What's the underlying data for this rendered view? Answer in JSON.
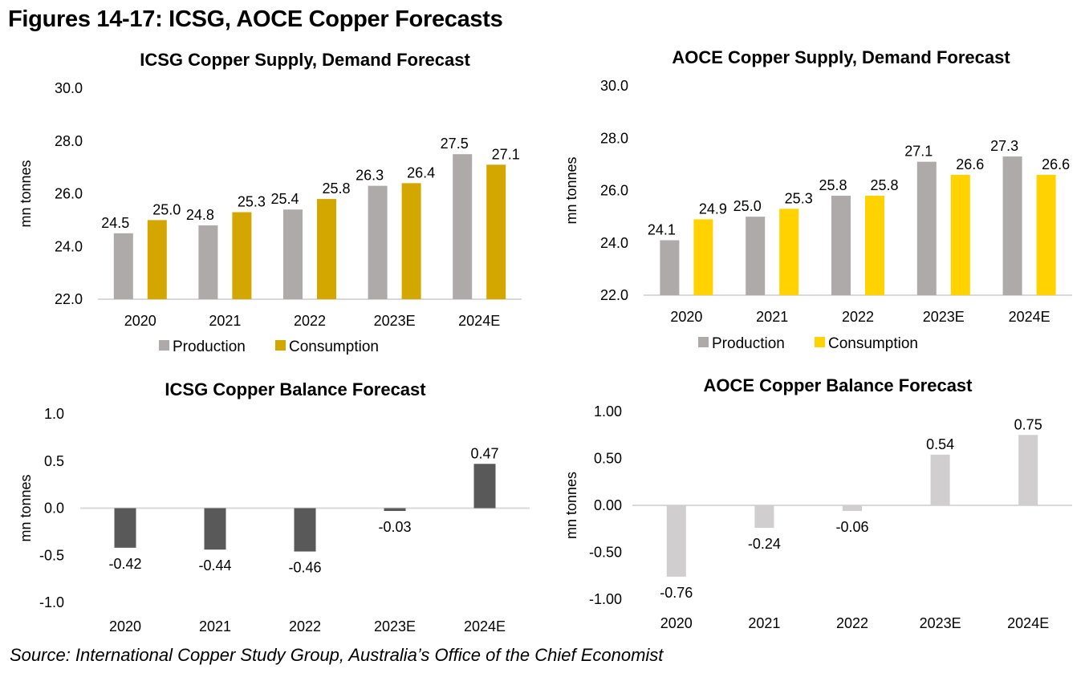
{
  "page": {
    "title": "Figures 14-17: ICSG, AOCE Copper Forecasts",
    "source": "Source: International Copper Study Group, Australia’s Office of the Chief Economist"
  },
  "chart_data": [
    {
      "id": "icsg-supply-demand",
      "type": "bar",
      "title": "ICSG Copper Supply, Demand Forecast",
      "xlabel": "",
      "ylabel": "mn tonnes",
      "ylim": [
        22.0,
        30.0
      ],
      "yticks": [
        22.0,
        24.0,
        26.0,
        28.0,
        30.0
      ],
      "ytick_labels": [
        "22.0",
        "24.0",
        "26.0",
        "28.0",
        "30.0"
      ],
      "categories": [
        "2020",
        "2021",
        "2022",
        "2023E",
        "2024E"
      ],
      "grid": false,
      "legend": "bottom",
      "series": [
        {
          "name": "Production",
          "color": "#aeaaaa",
          "values": [
            24.5,
            24.8,
            25.4,
            26.3,
            27.5
          ],
          "labels": [
            "24.5",
            "24.8",
            "25.4",
            "26.3",
            "27.5"
          ]
        },
        {
          "name": "Consumption",
          "color": "#d4a700",
          "values": [
            25.0,
            25.3,
            25.8,
            26.4,
            27.1
          ],
          "labels": [
            "25.0",
            "25.3",
            "25.8",
            "26.4",
            "27.1"
          ]
        }
      ]
    },
    {
      "id": "aoce-supply-demand",
      "type": "bar",
      "title": "AOCE Copper Supply, Demand Forecast",
      "xlabel": "",
      "ylabel": "mn tonnes",
      "ylim": [
        22.0,
        30.0
      ],
      "yticks": [
        22.0,
        24.0,
        26.0,
        28.0,
        30.0
      ],
      "ytick_labels": [
        "22.0",
        "24.0",
        "26.0",
        "28.0",
        "30.0"
      ],
      "categories": [
        "2020",
        "2021",
        "2022",
        "2023E",
        "2024E"
      ],
      "grid": false,
      "legend": "bottom",
      "series": [
        {
          "name": "Production",
          "color": "#aeaaaa",
          "values": [
            24.1,
            25.0,
            25.8,
            27.1,
            27.3
          ],
          "labels": [
            "24.1",
            "25.0",
            "25.8",
            "27.1",
            "27.3"
          ]
        },
        {
          "name": "Consumption",
          "color": "#ffd200",
          "values": [
            24.9,
            25.3,
            25.8,
            26.6,
            26.6
          ],
          "labels": [
            "24.9",
            "25.3",
            "25.8",
            "26.6",
            "26.6"
          ]
        }
      ]
    },
    {
      "id": "icsg-balance",
      "type": "bar",
      "title": "ICSG Copper Balance Forecast",
      "xlabel": "",
      "ylabel": "mn tonnes",
      "ylim": [
        -1.0,
        1.0
      ],
      "yticks": [
        -1.0,
        -0.5,
        0.0,
        0.5,
        1.0
      ],
      "ytick_labels": [
        "-1.0",
        "-0.5",
        "0.0",
        "0.5",
        "1.0"
      ],
      "categories": [
        "2020",
        "2021",
        "2022",
        "2023E",
        "2024E"
      ],
      "grid": false,
      "legend": "none",
      "series": [
        {
          "name": "Balance",
          "color": "#595959",
          "values": [
            -0.42,
            -0.44,
            -0.46,
            -0.03,
            0.47
          ],
          "labels": [
            "-0.42",
            "-0.44",
            "-0.46",
            "-0.03",
            "0.47"
          ]
        }
      ]
    },
    {
      "id": "aoce-balance",
      "type": "bar",
      "title": "AOCE Copper Balance Forecast",
      "xlabel": "",
      "ylabel": "mn tonnes",
      "ylim": [
        -1.0,
        1.0
      ],
      "yticks": [
        -1.0,
        -0.5,
        0.0,
        0.5,
        1.0
      ],
      "ytick_labels": [
        "-1.00",
        "-0.50",
        "0.00",
        "0.50",
        "1.00"
      ],
      "categories": [
        "2020",
        "2021",
        "2022",
        "2023E",
        "2024E"
      ],
      "grid": false,
      "legend": "none",
      "series": [
        {
          "name": "Balance",
          "color": "#d0cece",
          "values": [
            -0.76,
            -0.24,
            -0.06,
            0.54,
            0.75
          ],
          "labels": [
            "-0.76",
            "-0.24",
            "-0.06",
            "0.54",
            "0.75"
          ]
        }
      ]
    }
  ]
}
